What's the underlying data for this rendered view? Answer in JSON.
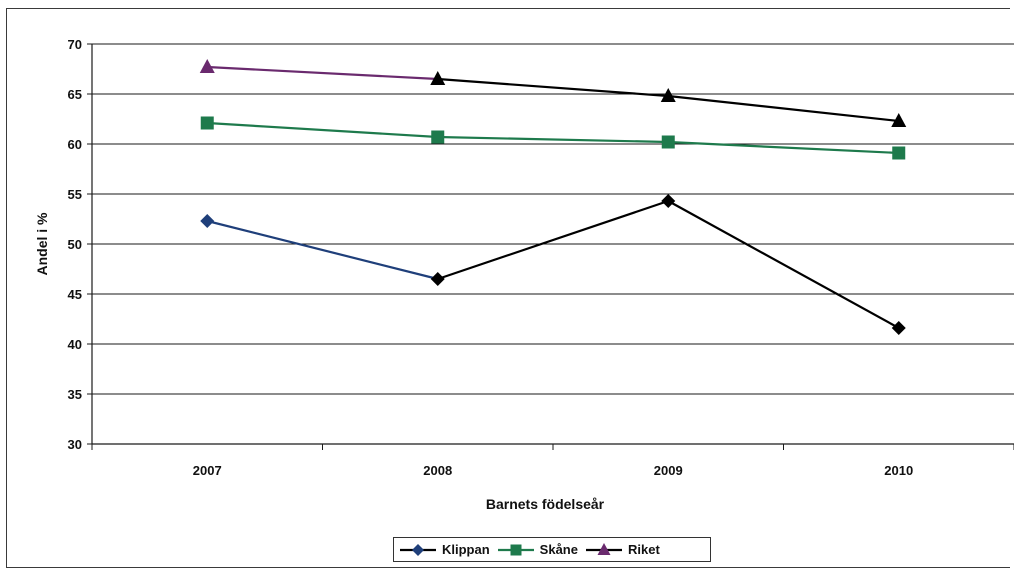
{
  "chart_data": {
    "type": "line",
    "title": "",
    "xlabel": "Barnets födelseår",
    "ylabel": "Andel i %",
    "categories": [
      "2007",
      "2008",
      "2009",
      "2010"
    ],
    "ylim": [
      30,
      70
    ],
    "yticks": [
      30,
      35,
      40,
      45,
      50,
      55,
      60,
      65,
      70
    ],
    "grid": "horizontal",
    "legend_position": "bottom",
    "series": [
      {
        "name": "Klippan",
        "values": [
          52.3,
          46.5,
          54.3,
          41.6
        ],
        "color": "#000000",
        "first_color": "#1f3f7a",
        "marker": "diamond"
      },
      {
        "name": "Skåne",
        "values": [
          62.1,
          60.7,
          60.2,
          59.1
        ],
        "color": "#1e7a4c",
        "marker": "square"
      },
      {
        "name": "Riket",
        "values": [
          67.7,
          66.5,
          64.8,
          62.3
        ],
        "color": "#000000",
        "first_color": "#6a2a6e",
        "marker": "triangle"
      }
    ]
  }
}
